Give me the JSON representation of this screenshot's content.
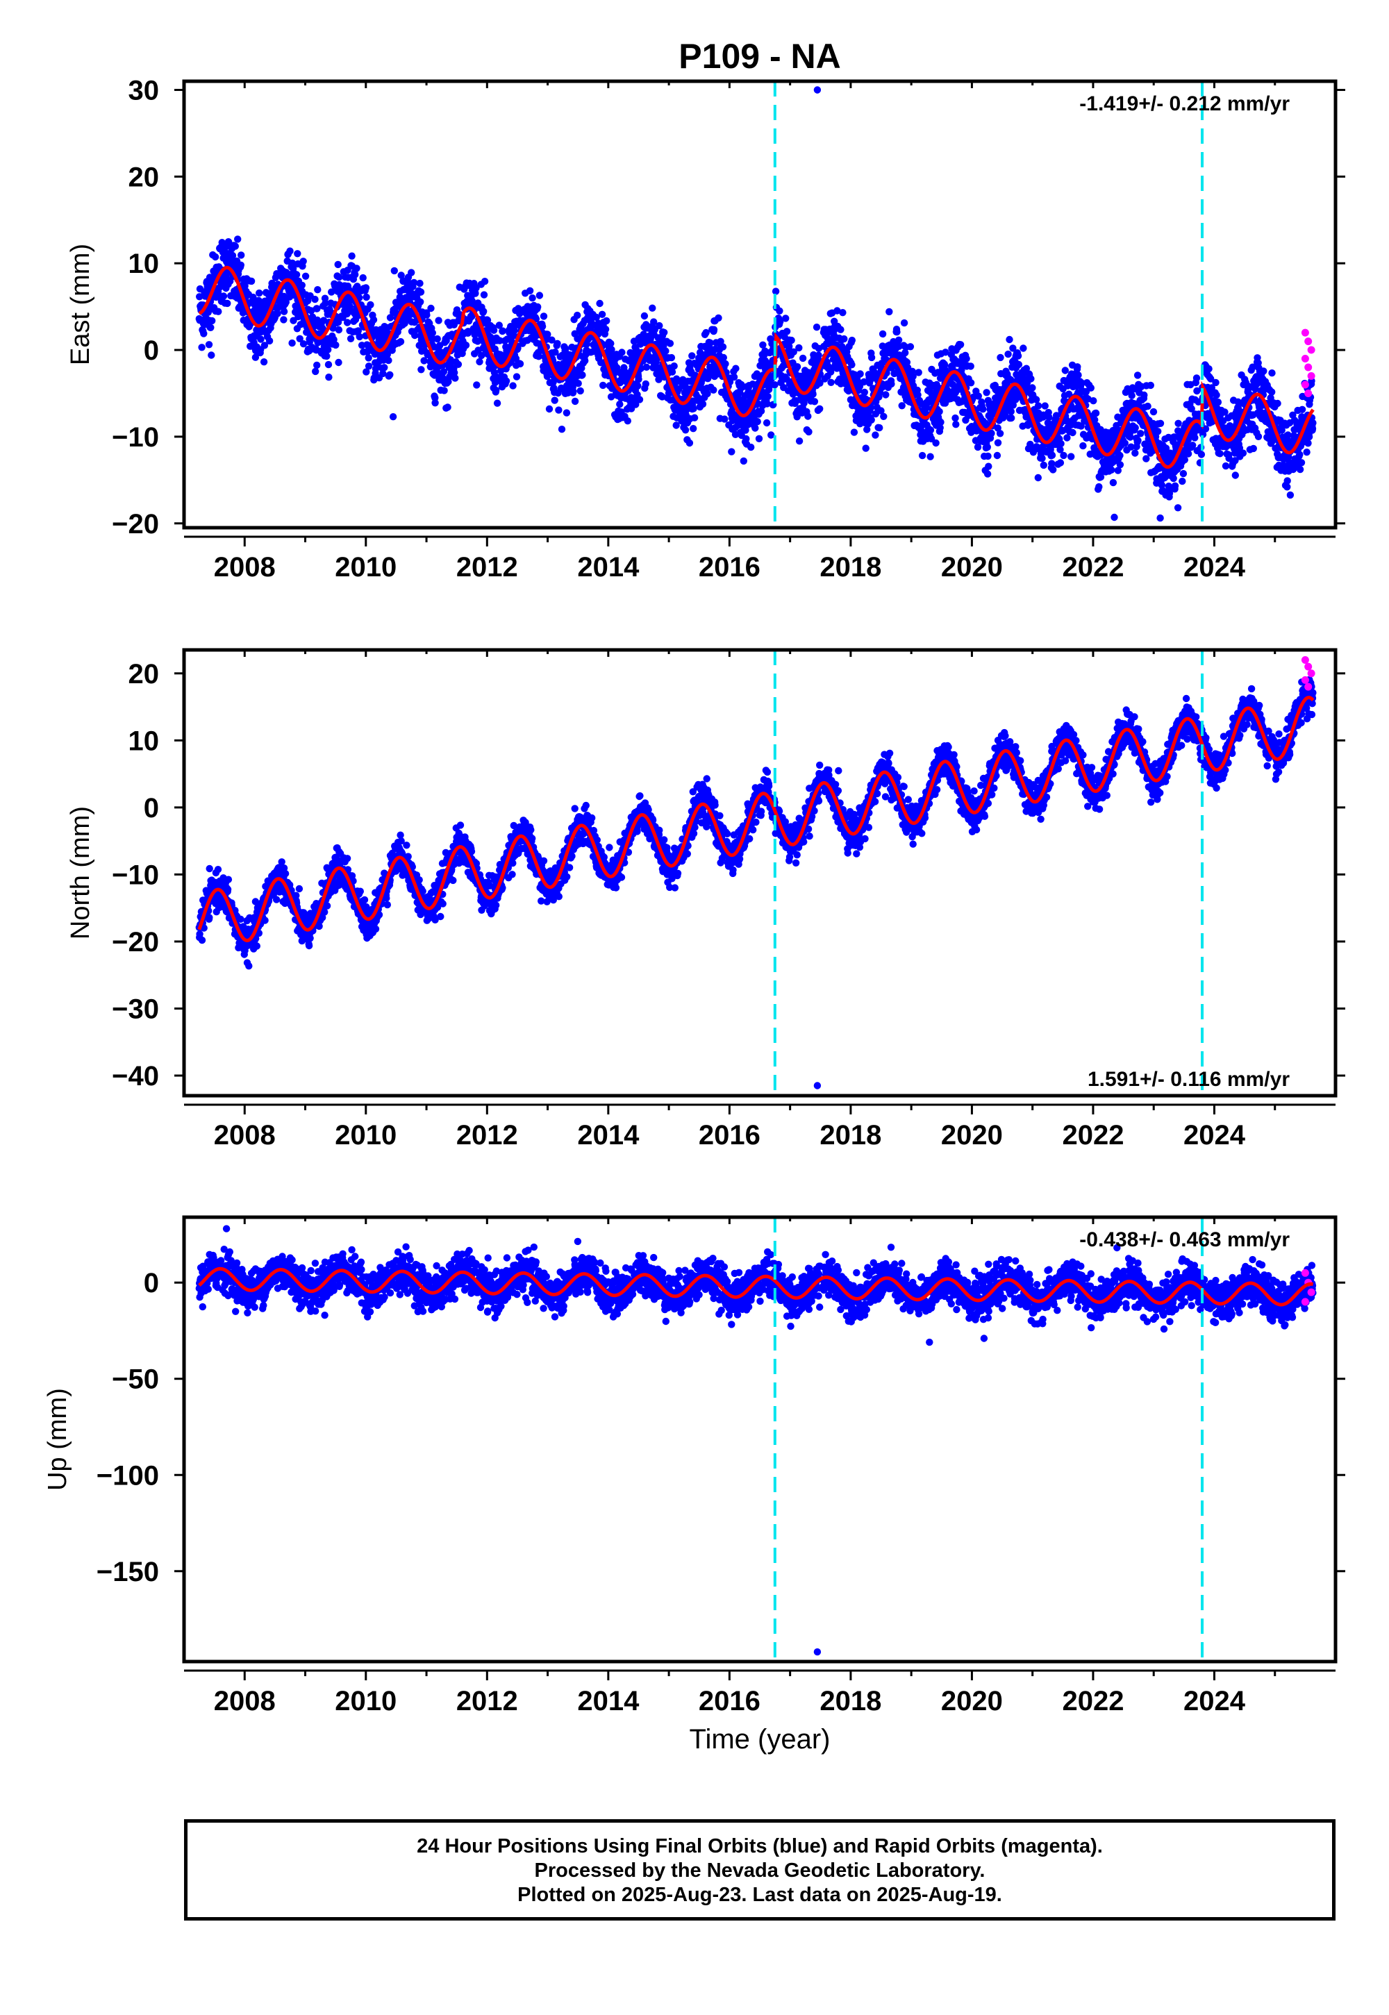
{
  "title": "P109 - NA",
  "xlabel": "Time (year)",
  "colors": {
    "final_orbits": "#0000ff",
    "rapid_orbits": "#ff00ff",
    "model": "#ff0000",
    "equipment_change": "#00e5ee",
    "frame": "#000000"
  },
  "footer": {
    "line1": "24 Hour Positions Using Final Orbits (blue) and Rapid Orbits (magenta).",
    "line2": "Processed by the Nevada Geodetic Laboratory.",
    "line3": "Plotted on 2025-Aug-23. Last data on 2025-Aug-19."
  },
  "chart_data": [
    {
      "type": "scatter",
      "panel": "east",
      "ylabel": "East (mm)",
      "velocity_label": "-1.419+/- 0.212 mm/yr",
      "velocity_label_position": "top-right",
      "xlim": [
        2007.0,
        2026.0
      ],
      "ylim": [
        -20.5,
        31
      ],
      "x_ticks": [
        "2008",
        "2010",
        "2012",
        "2014",
        "2016",
        "2018",
        "2020",
        "2022",
        "2024"
      ],
      "y_ticks": [
        "30",
        "20",
        "10",
        "0",
        "−10",
        "−20"
      ],
      "y_tick_values": [
        30,
        20,
        10,
        0,
        -10,
        -20
      ],
      "data_span": [
        2007.25,
        2025.63
      ],
      "equipment_changes": [
        2016.75,
        2023.8
      ],
      "model": {
        "rate_mm_per_yr": -1.419,
        "offset_at_2016": -0.5,
        "annual_amplitude": 3.0,
        "annual_phase_year": 0.72,
        "jumps": [
          {
            "year": 2011.6,
            "size": 2.0
          },
          {
            "year": 2016.75,
            "size": 4.0
          },
          {
            "year": 2023.8,
            "size": 4.5
          }
        ],
        "noise_std": 2.0
      },
      "outliers": [
        [
          2017.45,
          30.0
        ],
        [
          2010.45,
          -7.7
        ],
        [
          2011.35,
          -6.6
        ],
        [
          2023.4,
          -18.2
        ],
        [
          2022.35,
          -19.3
        ],
        [
          2007.45,
          -0.6
        ]
      ],
      "rapid_end": {
        "x_start": 2025.5,
        "y_values": [
          2,
          1,
          0,
          -1,
          -2,
          -3,
          -4,
          -5
        ]
      }
    },
    {
      "type": "scatter",
      "panel": "north",
      "ylabel": "North (mm)",
      "velocity_label": "1.591+/- 0.116 mm/yr",
      "velocity_label_position": "bottom-right",
      "xlim": [
        2007.0,
        2026.0
      ],
      "ylim": [
        -43,
        23.5
      ],
      "x_ticks": [
        "2008",
        "2010",
        "2012",
        "2014",
        "2016",
        "2018",
        "2020",
        "2022",
        "2024"
      ],
      "y_ticks": [
        "20",
        "10",
        "0",
        "−10",
        "−20",
        "−30",
        "−40"
      ],
      "y_tick_values": [
        20,
        10,
        0,
        -10,
        -20,
        -30,
        -40
      ],
      "data_span": [
        2007.25,
        2025.63
      ],
      "equipment_changes": [
        2016.75,
        2023.8
      ],
      "model": {
        "rate_mm_per_yr": 1.591,
        "offset_at_2016": -3.0,
        "annual_amplitude": 4.2,
        "annual_phase_year": 0.55,
        "jumps": [],
        "noise_std": 1.3
      },
      "outliers": [
        [
          2017.45,
          -41.5
        ]
      ],
      "rapid_end": {
        "x_start": 2025.5,
        "y_values": [
          22,
          21,
          20,
          19,
          18
        ]
      }
    },
    {
      "type": "scatter",
      "panel": "up",
      "ylabel": "Up (mm)",
      "velocity_label": "-0.438+/- 0.463 mm/yr",
      "velocity_label_position": "top-right",
      "xlim": [
        2007.0,
        2026.0
      ],
      "ylim": [
        -197,
        34
      ],
      "x_ticks": [
        "2008",
        "2010",
        "2012",
        "2014",
        "2016",
        "2018",
        "2020",
        "2022",
        "2024"
      ],
      "y_ticks": [
        "0",
        "−50",
        "−100",
        "−150"
      ],
      "y_tick_values": [
        0,
        -50,
        -100,
        -150
      ],
      "data_span": [
        2007.25,
        2025.63
      ],
      "equipment_changes": [
        2016.75,
        2023.8
      ],
      "model": {
        "rate_mm_per_yr": -0.438,
        "offset_at_2016": -2.0,
        "annual_amplitude": 5.5,
        "annual_phase_year": 0.6,
        "jumps": [],
        "noise_std": 5.0
      },
      "outliers": [
        [
          2017.45,
          -192.0
        ],
        [
          2007.7,
          28.0
        ],
        [
          2019.3,
          -31.0
        ],
        [
          2020.2,
          -29.0
        ]
      ],
      "rapid_end": {
        "x_start": 2025.5,
        "y_values": [
          5,
          0,
          -5,
          -10
        ]
      }
    }
  ]
}
